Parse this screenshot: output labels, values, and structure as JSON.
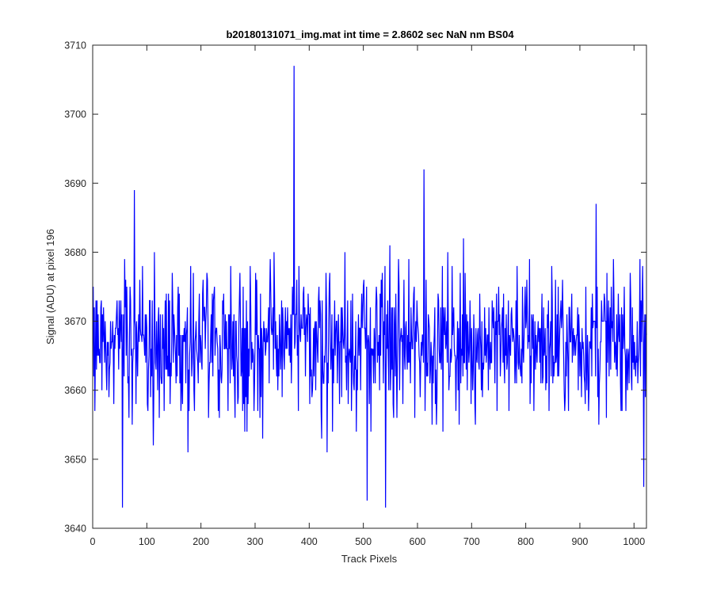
{
  "colors": {
    "series": "#0000ff",
    "axis": "#262626",
    "background": "#ffffff"
  },
  "chart_data": {
    "type": "line",
    "title": "b20180131071_img.mat int time = 2.8602 sec  NaN nm BS04",
    "xlabel": "Track Pixels",
    "ylabel": "Signal (ADU) at pixel 196",
    "xlim": [
      0,
      1023
    ],
    "ylim": [
      3640,
      3710
    ],
    "xticks": [
      "0",
      "100",
      "200",
      "300",
      "400",
      "500",
      "600",
      "700",
      "800",
      "900",
      "1000"
    ],
    "yticks": [
      "3640",
      "3650",
      "3660",
      "3670",
      "3680",
      "3690",
      "3700",
      "3710"
    ],
    "grid": false,
    "series": [
      {
        "x_start": 1,
        "x_step": 1,
        "note_points": "one value per track pixel 1..1023, noisy around 3667",
        "values": []
      }
    ],
    "notable_points": [
      {
        "x": 55,
        "y": 3643
      },
      {
        "x": 77,
        "y": 3689
      },
      {
        "x": 372,
        "y": 3707
      },
      {
        "x": 507,
        "y": 3644
      },
      {
        "x": 541,
        "y": 3643
      },
      {
        "x": 612,
        "y": 3692
      },
      {
        "x": 930,
        "y": 3687
      },
      {
        "x": 1018,
        "y": 3646
      }
    ]
  }
}
